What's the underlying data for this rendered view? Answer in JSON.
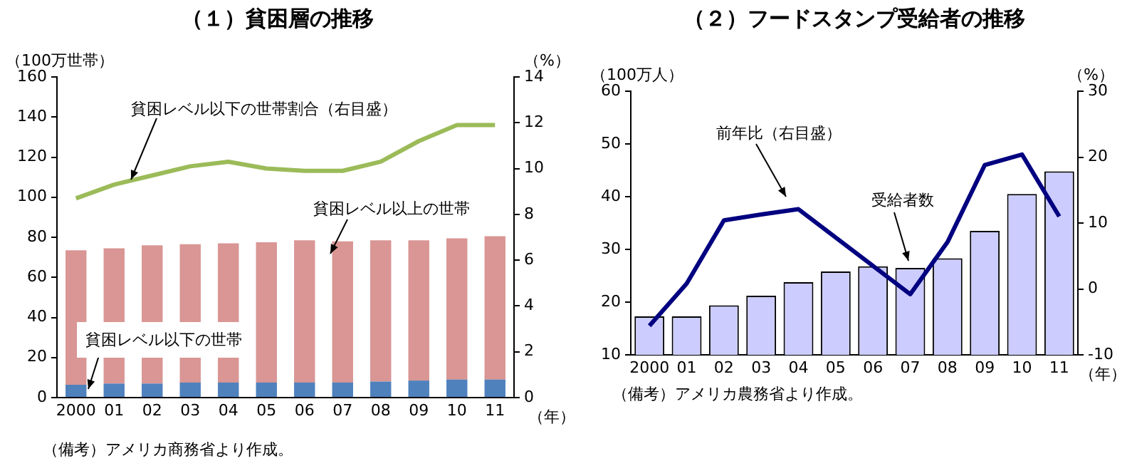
{
  "chart_data": [
    {
      "type": "bar",
      "title": "（１）貧困層の推移",
      "ylabel": "（100万世帯）",
      "y2label": "（%）",
      "xlabel": "（年）",
      "stacked": true,
      "legend": false,
      "grid": false,
      "categories": [
        "2000",
        "01",
        "02",
        "03",
        "04",
        "05",
        "06",
        "07",
        "08",
        "09",
        "10",
        "11"
      ],
      "ylim": [
        0,
        160
      ],
      "yticks": [
        0,
        20,
        40,
        60,
        80,
        100,
        120,
        140,
        160
      ],
      "y2lim": [
        0,
        14
      ],
      "y2ticks": [
        0,
        2,
        4,
        6,
        8,
        10,
        12,
        14
      ],
      "series": [
        {
          "name": "貧困レベル以下の世帯",
          "color": "#4f81bd",
          "values": [
            6.4,
            7,
            7,
            7.5,
            7.5,
            7.5,
            7.5,
            7.5,
            8,
            8.5,
            9,
            9
          ]
        },
        {
          "name": "貧困レベル以上の世帯",
          "color": "#d99694",
          "values": [
            67.1,
            67.5,
            69,
            69,
            69.5,
            70,
            71,
            70.5,
            70.5,
            70,
            70.5,
            71.5
          ]
        },
        {
          "name": "貧困レベル以下の世帯割合（右目盛）",
          "type": "line",
          "axis": "y2",
          "color": "#9bbb59",
          "values": [
            8.7,
            9.3,
            9.7,
            10.1,
            10.3,
            10,
            9.9,
            9.9,
            10.3,
            11.2,
            11.9,
            11.9
          ]
        }
      ],
      "annotations": [
        "（備考）アメリカ商務省より作成。"
      ]
    },
    {
      "type": "bar",
      "title": "（２）フードスタンプ受給者の推移",
      "ylabel": "（100万人）",
      "y2label": "（%）",
      "xlabel": "（年）",
      "legend": false,
      "grid": false,
      "categories": [
        "2000",
        "01",
        "02",
        "03",
        "04",
        "05",
        "06",
        "07",
        "08",
        "09",
        "10",
        "11"
      ],
      "ylim": [
        10,
        60
      ],
      "yticks": [
        10,
        20,
        30,
        40,
        50,
        60
      ],
      "y2lim": [
        -10,
        30
      ],
      "y2ticks": [
        -10,
        0,
        10,
        20,
        30
      ],
      "series": [
        {
          "name": "受給者数",
          "color": "#ccccff",
          "values": [
            17.3,
            17.3,
            19.4,
            21.2,
            23.8,
            25.8,
            26.8,
            26.5,
            28.3,
            33.5,
            40.5,
            44.8
          ]
        },
        {
          "name": "前年比（右目盛）",
          "type": "line",
          "axis": "y2",
          "color": "#000080",
          "values": [
            -5.6,
            0.8,
            10.4,
            11.3,
            12.1,
            7.8,
            3.5,
            -0.8,
            7.1,
            18.8,
            20.4,
            11.0
          ]
        }
      ],
      "annotations": [
        "（備考）アメリカ農務省より作成。"
      ]
    }
  ]
}
